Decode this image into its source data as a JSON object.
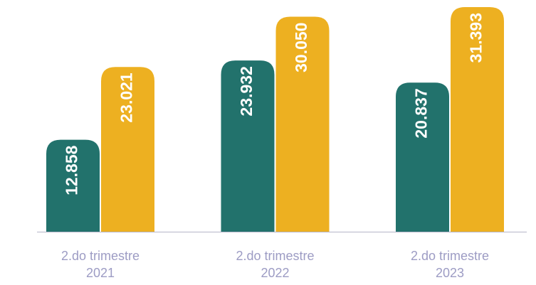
{
  "chart_data": {
    "type": "bar",
    "categories": [
      "2.do trimestre 2021",
      "2.do trimestre 2022",
      "2.do trimestre 2023"
    ],
    "series": [
      {
        "color": "#22726c",
        "values": [
          12858,
          23932,
          20837
        ],
        "value_labels": [
          "12.858",
          "23.932",
          "20.837"
        ]
      },
      {
        "color": "#edb021",
        "values": [
          23021,
          30050,
          31393
        ],
        "value_labels": [
          "23.021",
          "30.050",
          "31.393"
        ]
      }
    ]
  }
}
